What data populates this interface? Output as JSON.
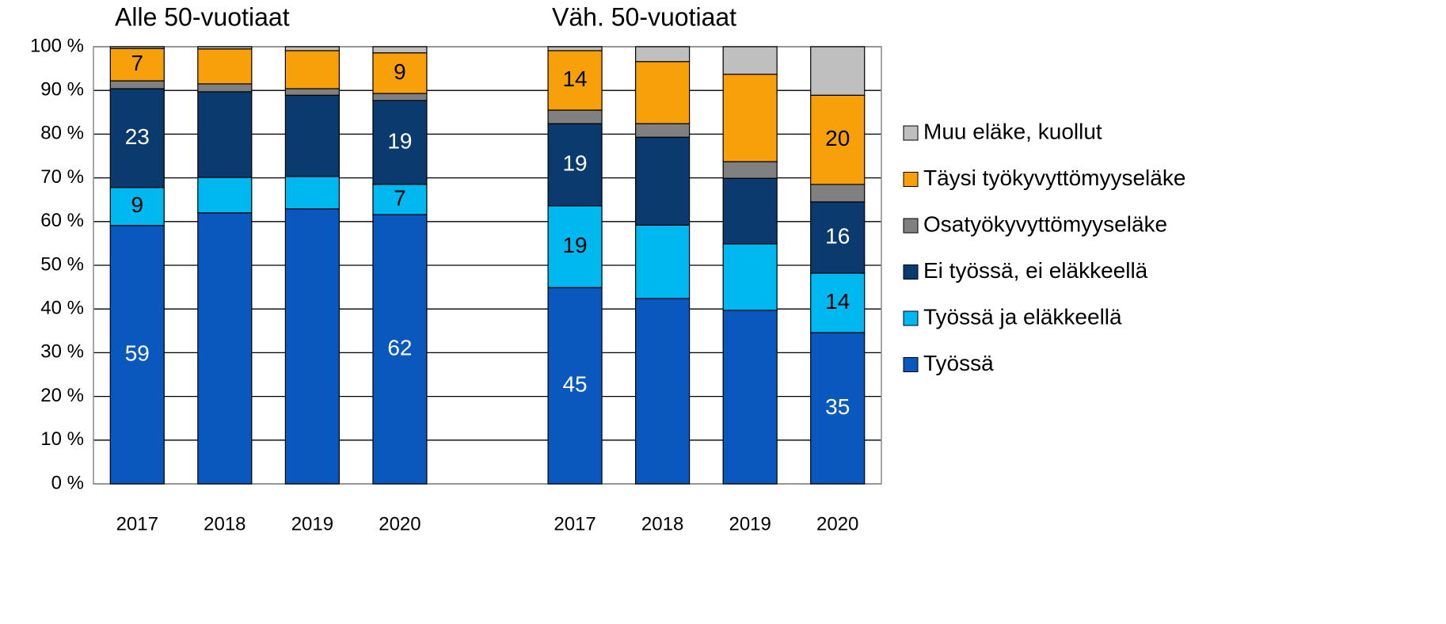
{
  "chart_data": {
    "type": "stacked_bar",
    "group_labels": [
      "Alle 50-vuotiaat",
      "Väh. 50-vuotiaat"
    ],
    "categories": [
      "2017",
      "2018",
      "2019",
      "2020",
      null,
      "2017",
      "2018",
      "2019",
      "2020"
    ],
    "series": [
      {
        "name": "Työssä",
        "color": "#0a58bd",
        "label_color": "#ffffff",
        "values": [
          59.1,
          62.0,
          62.9,
          61.6,
          null,
          44.9,
          42.4,
          39.7,
          34.6
        ],
        "value_labels": [
          "59",
          null,
          null,
          "62",
          null,
          "45",
          null,
          null,
          "35"
        ]
      },
      {
        "name": "Työssä ja eläkkeellä",
        "color": "#00b8f0",
        "label_color": "#000000",
        "values": [
          8.7,
          8.1,
          7.4,
          6.9,
          null,
          18.7,
          16.8,
          15.2,
          13.6
        ],
        "value_labels": [
          "9",
          null,
          null,
          "7",
          null,
          "19",
          null,
          null,
          "14"
        ]
      },
      {
        "name": "Ei työssä, ei eläkkeellä",
        "color": "#0a3a6e",
        "label_color": "#ffffff",
        "values": [
          22.6,
          19.6,
          18.6,
          19.2,
          null,
          18.8,
          20.1,
          15.0,
          16.3
        ],
        "value_labels": [
          "23",
          null,
          null,
          "19",
          null,
          "19",
          null,
          null,
          "16"
        ]
      },
      {
        "name": "Osatyökyvyttömyyseläke",
        "color": "#808080",
        "label_color": "#000000",
        "values": [
          1.8,
          1.8,
          1.5,
          1.6,
          null,
          3.1,
          3.1,
          3.8,
          4.0
        ],
        "value_labels": [
          null,
          null,
          null,
          null,
          null,
          null,
          null,
          null,
          null
        ]
      },
      {
        "name": "Täysi työkyvyttömyyseläke",
        "color": "#f8a00a",
        "label_color": "#000000",
        "values": [
          7.4,
          8.0,
          8.7,
          9.3,
          null,
          13.6,
          14.2,
          20.0,
          20.4
        ],
        "value_labels": [
          "7",
          null,
          null,
          "9",
          null,
          "14",
          null,
          null,
          "20"
        ]
      },
      {
        "name": "Muu eläke, kuollut",
        "color": "#bfbfbf",
        "label_color": "#000000",
        "values": [
          0.4,
          0.5,
          0.9,
          1.4,
          null,
          0.9,
          3.4,
          6.3,
          11.1
        ],
        "value_labels": [
          null,
          null,
          null,
          null,
          null,
          null,
          null,
          null,
          null
        ]
      }
    ],
    "ylim": [
      0,
      100
    ],
    "yticks": [
      {
        "value": 0,
        "label": "0 %"
      },
      {
        "value": 10,
        "label": "10 %"
      },
      {
        "value": 20,
        "label": "20 %"
      },
      {
        "value": 30,
        "label": "30 %"
      },
      {
        "value": 40,
        "label": "40 %"
      },
      {
        "value": 50,
        "label": "50 %"
      },
      {
        "value": 60,
        "label": "60 %"
      },
      {
        "value": 70,
        "label": "70 %"
      },
      {
        "value": 80,
        "label": "80 %"
      },
      {
        "value": 90,
        "label": "90 %"
      },
      {
        "value": 100,
        "label": "100 %"
      }
    ],
    "grid": true,
    "legend": "right"
  }
}
